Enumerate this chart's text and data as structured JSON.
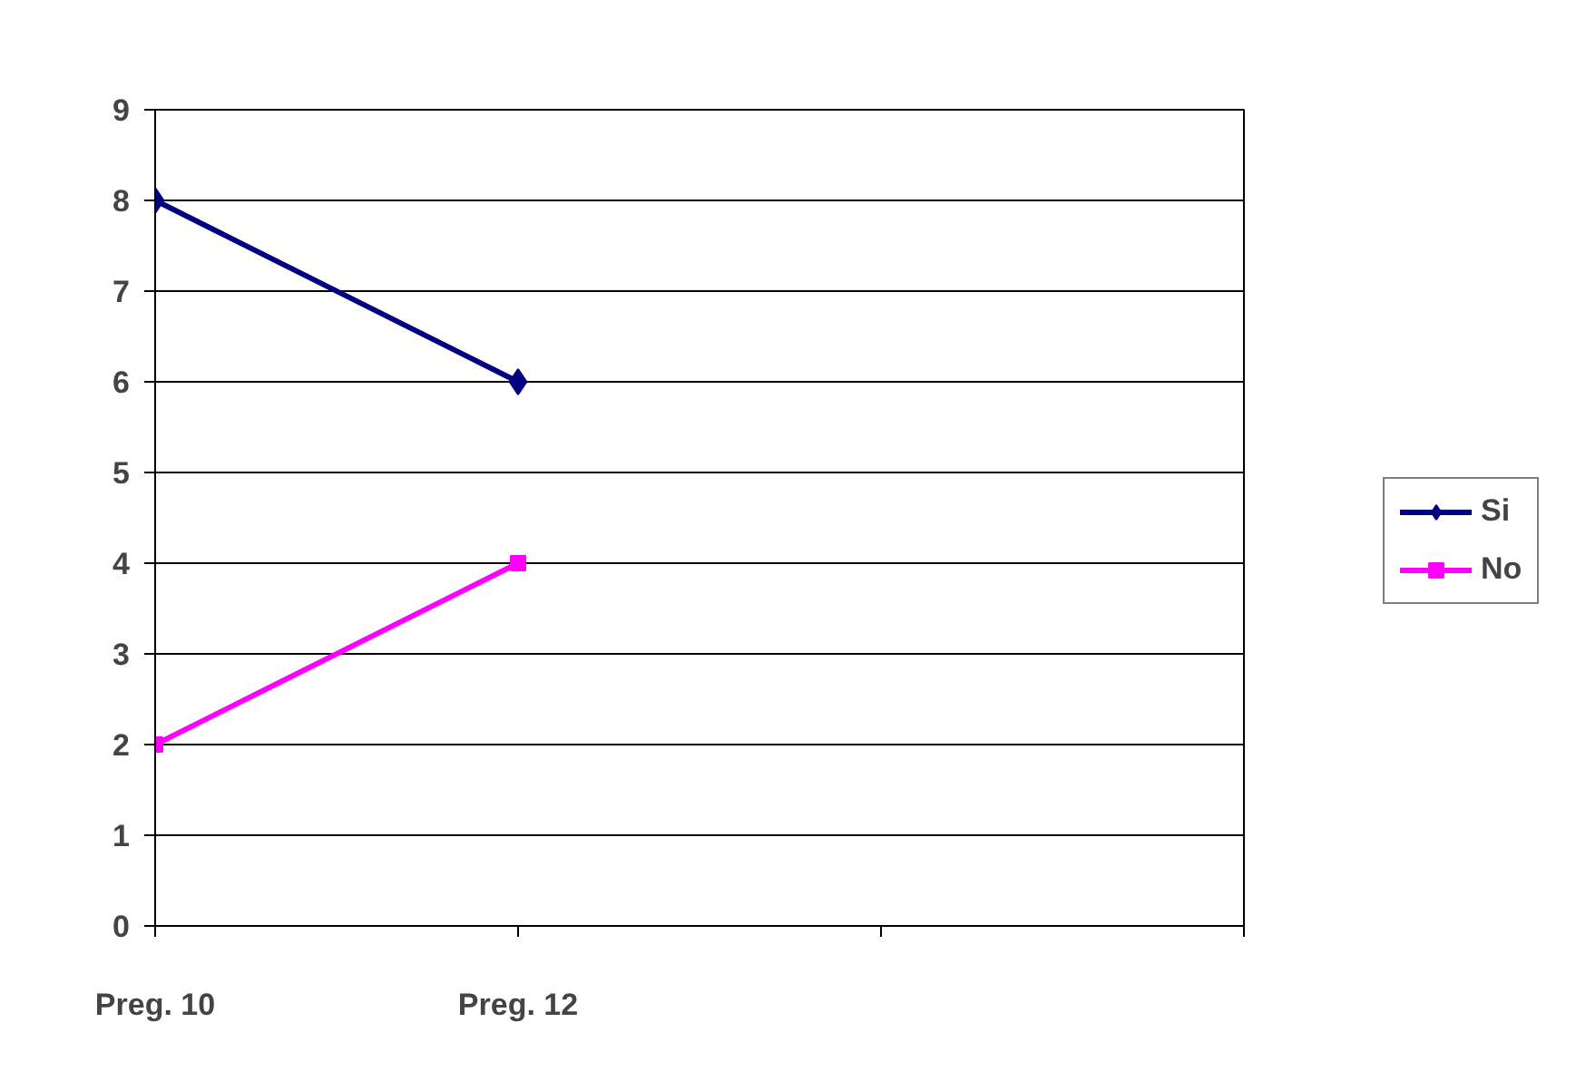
{
  "chart_data": {
    "type": "line",
    "categories": [
      "Preg. 10",
      "Preg. 12",
      null,
      null
    ],
    "series": [
      {
        "name": "Si",
        "color": "#000080",
        "values": [
          8,
          6,
          null,
          null
        ],
        "marker": "diamond"
      },
      {
        "name": "No",
        "color": "#ff00ff",
        "values": [
          2,
          4,
          null,
          null
        ],
        "marker": "square"
      }
    ],
    "ylim": [
      0,
      9
    ],
    "yticks": [
      0,
      1,
      2,
      3,
      4,
      5,
      6,
      7,
      8,
      9
    ],
    "grid": "y",
    "legend": "right",
    "line_style": "solid"
  }
}
